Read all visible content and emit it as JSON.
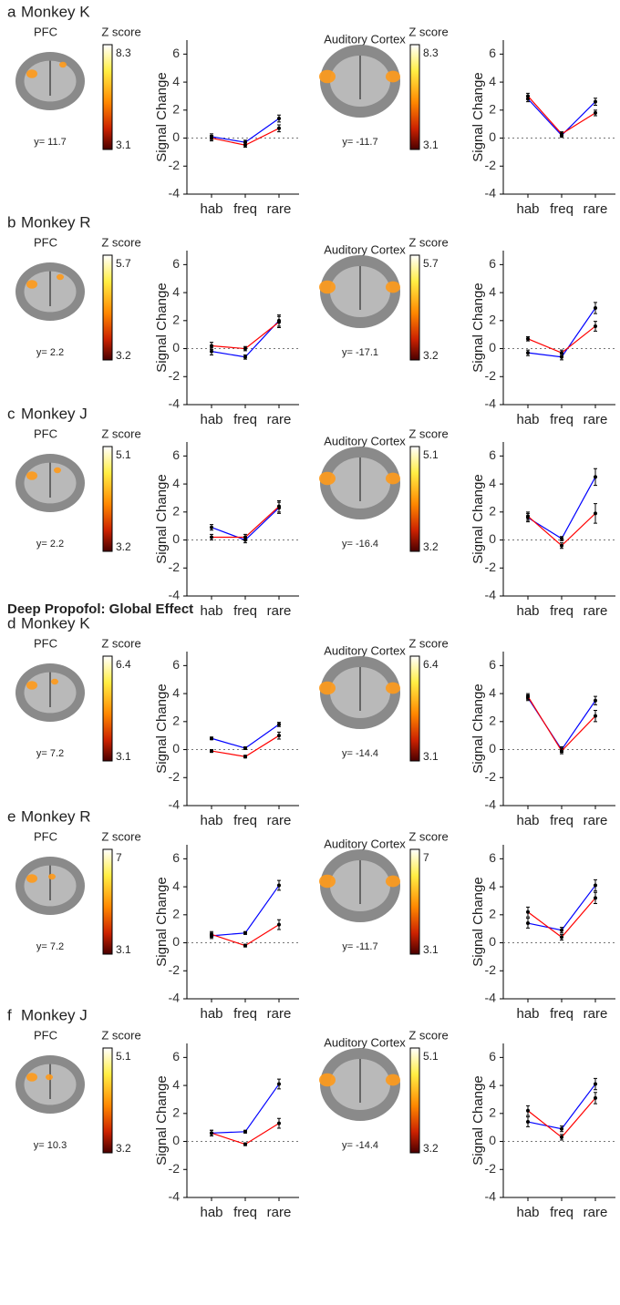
{
  "section_heading": "Deep Propofol: Global Effect",
  "panels": [
    {
      "label": "a",
      "title": "Monkey K",
      "maps": [
        {
          "region": "PFC",
          "colorbar_title": "Z score",
          "clim": [
            3.1,
            8.3
          ],
          "coordinate": "y= 11.7"
        },
        {
          "region": "Auditory Cortex",
          "colorbar_title": "Z score",
          "clim": [
            3.1,
            8.3
          ],
          "coordinate": "y= -11.7"
        }
      ]
    },
    {
      "label": "b",
      "title": "Monkey R",
      "maps": [
        {
          "region": "PFC",
          "colorbar_title": "Z score",
          "clim": [
            3.2,
            5.7
          ],
          "coordinate": "y= 2.2"
        },
        {
          "region": "Auditory Cortex",
          "colorbar_title": "Z score",
          "clim": [
            3.2,
            5.7
          ],
          "coordinate": "y= -17.1"
        }
      ]
    },
    {
      "label": "c",
      "title": "Monkey J",
      "maps": [
        {
          "region": "PFC",
          "colorbar_title": "Z score",
          "clim": [
            3.2,
            5.1
          ],
          "coordinate": "y= 2.2"
        },
        {
          "region": "Auditory Cortex",
          "colorbar_title": "Z score",
          "clim": [
            3.2,
            5.1
          ],
          "coordinate": "y= -16.4"
        }
      ]
    },
    {
      "label": "d",
      "title": "Monkey K",
      "maps": [
        {
          "region": "PFC",
          "colorbar_title": "Z score",
          "clim": [
            3.1,
            6.4
          ],
          "coordinate": "y= 7.2"
        },
        {
          "region": "Auditory Cortex",
          "colorbar_title": "Z score",
          "clim": [
            3.1,
            6.4
          ],
          "coordinate": "y= -14.4"
        }
      ]
    },
    {
      "label": "e",
      "title": "Monkey R",
      "maps": [
        {
          "region": "PFC",
          "colorbar_title": "Z score",
          "clim": [
            3.1,
            7
          ],
          "coordinate": "y= 7.2"
        },
        {
          "region": "Auditory Cortex",
          "colorbar_title": "Z score",
          "clim": [
            3.1,
            7
          ],
          "coordinate": "y= -11.7"
        }
      ]
    },
    {
      "label": "f",
      "title": "Monkey J",
      "maps": [
        {
          "region": "PFC",
          "colorbar_title": "Z score",
          "clim": [
            3.2,
            5.1
          ],
          "coordinate": "y= 10.3"
        },
        {
          "region": "Auditory Cortex",
          "colorbar_title": "Z score",
          "clim": [
            3.2,
            5.1
          ],
          "coordinate": "y= -14.4"
        }
      ]
    }
  ],
  "chart_data": [
    {
      "type": "line",
      "ylabel": "Signal Change",
      "categories": [
        "hab",
        "freq",
        "rare"
      ],
      "ylim": [
        -4,
        7
      ],
      "yticks": [
        -4,
        -2,
        0,
        2,
        4,
        6
      ],
      "hline": 0,
      "series": [
        {
          "color": "#0000ff",
          "values": [
            0.1,
            -0.3,
            1.4
          ],
          "errors": [
            0.2,
            0.15,
            0.25
          ]
        },
        {
          "color": "#ff0000",
          "values": [
            0,
            -0.5,
            0.7
          ],
          "errors": [
            0.2,
            0.15,
            0.25
          ]
        }
      ]
    },
    {
      "type": "line",
      "ylabel": "Signal Change",
      "categories": [
        "hab",
        "freq",
        "rare"
      ],
      "ylim": [
        -4,
        7
      ],
      "yticks": [
        -4,
        -2,
        0,
        2,
        4,
        6
      ],
      "hline": 0,
      "series": [
        {
          "color": "#0000ff",
          "values": [
            2.8,
            0.2,
            2.6
          ],
          "errors": [
            0.2,
            0.15,
            0.25
          ]
        },
        {
          "color": "#ff0000",
          "values": [
            3.0,
            0.3,
            1.8
          ],
          "errors": [
            0.2,
            0.15,
            0.2
          ]
        }
      ]
    },
    {
      "type": "line",
      "ylabel": "Signal Change",
      "categories": [
        "hab",
        "freq",
        "rare"
      ],
      "ylim": [
        -4,
        7
      ],
      "yticks": [
        -4,
        -2,
        0,
        2,
        4,
        6
      ],
      "hline": 0,
      "series": [
        {
          "color": "#0000ff",
          "values": [
            -0.2,
            -0.6,
            2.0
          ],
          "errors": [
            0.25,
            0.15,
            0.4
          ]
        },
        {
          "color": "#ff0000",
          "values": [
            0.2,
            0,
            1.9
          ],
          "errors": [
            0.25,
            0.15,
            0.4
          ]
        }
      ]
    },
    {
      "type": "line",
      "ylabel": "Signal Change",
      "categories": [
        "hab",
        "freq",
        "rare"
      ],
      "ylim": [
        -4,
        7
      ],
      "yticks": [
        -4,
        -2,
        0,
        2,
        4,
        6
      ],
      "hline": 0,
      "series": [
        {
          "color": "#0000ff",
          "values": [
            -0.3,
            -0.6,
            2.9
          ],
          "errors": [
            0.2,
            0.2,
            0.4
          ]
        },
        {
          "color": "#ff0000",
          "values": [
            0.7,
            -0.3,
            1.6
          ],
          "errors": [
            0.15,
            0.2,
            0.35
          ]
        }
      ]
    },
    {
      "type": "line",
      "ylabel": "Signal Change",
      "categories": [
        "hab",
        "freq",
        "rare"
      ],
      "ylim": [
        -4,
        7
      ],
      "yticks": [
        -4,
        -2,
        0,
        2,
        4,
        6
      ],
      "hline": 0,
      "series": [
        {
          "color": "#0000ff",
          "values": [
            0.9,
            0,
            2.3
          ],
          "errors": [
            0.2,
            0.2,
            0.4
          ]
        },
        {
          "color": "#ff0000",
          "values": [
            0.2,
            0.2,
            2.4
          ],
          "errors": [
            0.2,
            0.2,
            0.4
          ]
        }
      ]
    },
    {
      "type": "line",
      "ylabel": "Signal Change",
      "categories": [
        "hab",
        "freq",
        "rare"
      ],
      "ylim": [
        -4,
        7
      ],
      "yticks": [
        -4,
        -2,
        0,
        2,
        4,
        6
      ],
      "hline": 0,
      "series": [
        {
          "color": "#0000ff",
          "values": [
            1.6,
            0.1,
            4.5
          ],
          "errors": [
            0.3,
            0.15,
            0.6
          ]
        },
        {
          "color": "#ff0000",
          "values": [
            1.7,
            -0.4,
            1.9
          ],
          "errors": [
            0.3,
            0.2,
            0.7
          ]
        }
      ]
    },
    {
      "type": "line",
      "ylabel": "Signal Change",
      "categories": [
        "hab",
        "freq",
        "rare"
      ],
      "ylim": [
        -4,
        7
      ],
      "yticks": [
        -4,
        -2,
        0,
        2,
        4,
        6
      ],
      "hline": 0,
      "series": [
        {
          "color": "#0000ff",
          "values": [
            0.8,
            0.1,
            1.8
          ],
          "errors": [
            0.1,
            0.1,
            0.15
          ]
        },
        {
          "color": "#ff0000",
          "values": [
            -0.1,
            -0.5,
            1.0
          ],
          "errors": [
            0.1,
            0.1,
            0.25
          ]
        }
      ]
    },
    {
      "type": "line",
      "ylabel": "Signal Change",
      "categories": [
        "hab",
        "freq",
        "rare"
      ],
      "ylim": [
        -4,
        7
      ],
      "yticks": [
        -4,
        -2,
        0,
        2,
        4,
        6
      ],
      "hline": 0,
      "series": [
        {
          "color": "#0000ff",
          "values": [
            3.7,
            0,
            3.5
          ],
          "errors": [
            0.2,
            0.2,
            0.3
          ]
        },
        {
          "color": "#ff0000",
          "values": [
            3.8,
            -0.1,
            2.4
          ],
          "errors": [
            0.2,
            0.2,
            0.4
          ]
        }
      ]
    },
    {
      "type": "line",
      "ylabel": "Signal Change",
      "categories": [
        "hab",
        "freq",
        "rare"
      ],
      "ylim": [
        -4,
        7
      ],
      "yticks": [
        -4,
        -2,
        0,
        2,
        4,
        6
      ],
      "hline": 0,
      "series": [
        {
          "color": "#0000ff",
          "values": [
            0.5,
            0.7,
            4.1
          ],
          "errors": [
            0.2,
            0.1,
            0.35
          ]
        },
        {
          "color": "#ff0000",
          "values": [
            0.6,
            -0.2,
            1.3
          ],
          "errors": [
            0.2,
            0.1,
            0.35
          ]
        }
      ]
    },
    {
      "type": "line",
      "ylabel": "Signal Change",
      "categories": [
        "hab",
        "freq",
        "rare"
      ],
      "ylim": [
        -4,
        7
      ],
      "yticks": [
        -4,
        -2,
        0,
        2,
        4,
        6
      ],
      "hline": 0,
      "series": [
        {
          "color": "#0000ff",
          "values": [
            1.4,
            0.9,
            4.1
          ],
          "errors": [
            0.35,
            0.2,
            0.4
          ]
        },
        {
          "color": "#ff0000",
          "values": [
            2.2,
            0.4,
            3.2
          ],
          "errors": [
            0.35,
            0.2,
            0.4
          ]
        }
      ]
    },
    {
      "type": "line",
      "ylabel": "Signal Change",
      "categories": [
        "hab",
        "freq",
        "rare"
      ],
      "ylim": [
        -4,
        7
      ],
      "yticks": [
        -4,
        -2,
        0,
        2,
        4,
        6
      ],
      "hline": 0,
      "series": [
        {
          "color": "#0000ff",
          "values": [
            0.6,
            0.7,
            4.1
          ],
          "errors": [
            0.2,
            0.1,
            0.35
          ]
        },
        {
          "color": "#ff0000",
          "values": [
            0.6,
            -0.2,
            1.3
          ],
          "errors": [
            0.2,
            0.1,
            0.35
          ]
        }
      ]
    },
    {
      "type": "line",
      "ylabel": "Signal Change",
      "categories": [
        "hab",
        "freq",
        "rare"
      ],
      "ylim": [
        -4,
        7
      ],
      "yticks": [
        -4,
        -2,
        0,
        2,
        4,
        6
      ],
      "hline": 0,
      "series": [
        {
          "color": "#0000ff",
          "values": [
            1.4,
            0.9,
            4.1
          ],
          "errors": [
            0.35,
            0.2,
            0.4
          ]
        },
        {
          "color": "#ff0000",
          "values": [
            2.2,
            0.3,
            3.1
          ],
          "errors": [
            0.35,
            0.2,
            0.4
          ]
        }
      ]
    }
  ]
}
